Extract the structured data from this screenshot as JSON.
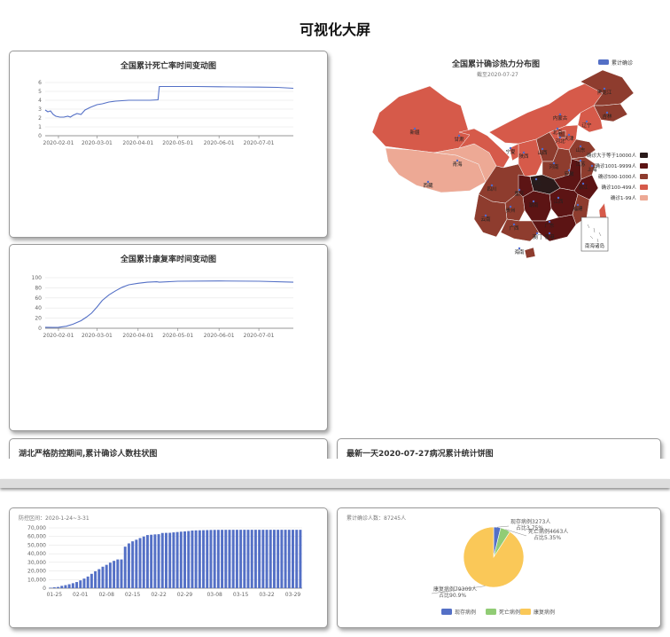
{
  "page_title": "可视化大屏",
  "cards": {
    "death": {
      "title": "全国累计死亡率时间变动图"
    },
    "recover": {
      "title": "全国累计康复率时间变动图"
    },
    "map": {
      "title": "全国累计确诊热力分布图",
      "subtitle": "截至2020-07-27"
    },
    "hubei_bar": {
      "title": "湖北严格防控期间,累计确诊人数柱状图",
      "subtitle": "防控区间：2020-1-24~3-31"
    },
    "pie": {
      "title": "最新一天2020-07-27病况累计统计饼图",
      "subtitle": "累计确诊人数：87245人"
    }
  },
  "chart_data": [
    {
      "id": "death",
      "type": "line",
      "title": "全国累计死亡率时间变动图",
      "x_ticks": [
        "2020-02-01",
        "2020-03-01",
        "2020-04-01",
        "2020-05-01",
        "2020-06-01",
        "2020-07-01"
      ],
      "y_ticks": [
        0,
        1,
        2,
        3,
        4,
        5,
        6
      ],
      "ylim": [
        0,
        6
      ],
      "x_start": "2020-01-22",
      "x_end": "2020-07-27",
      "color": "#5470c6",
      "points": [
        [
          "2020-01-22",
          2.9
        ],
        [
          "2020-01-24",
          2.7
        ],
        [
          "2020-01-26",
          2.8
        ],
        [
          "2020-01-28",
          2.4
        ],
        [
          "2020-01-30",
          2.2
        ],
        [
          "2020-02-02",
          2.1
        ],
        [
          "2020-02-05",
          2.1
        ],
        [
          "2020-02-08",
          2.2
        ],
        [
          "2020-02-10",
          2.1
        ],
        [
          "2020-02-12",
          2.3
        ],
        [
          "2020-02-15",
          2.5
        ],
        [
          "2020-02-18",
          2.4
        ],
        [
          "2020-02-21",
          2.9
        ],
        [
          "2020-02-25",
          3.2
        ],
        [
          "2020-03-01",
          3.5
        ],
        [
          "2020-03-05",
          3.6
        ],
        [
          "2020-03-10",
          3.8
        ],
        [
          "2020-03-15",
          3.9
        ],
        [
          "2020-03-20",
          3.95
        ],
        [
          "2020-03-25",
          4.0
        ],
        [
          "2020-04-01",
          4.0
        ],
        [
          "2020-04-10",
          4.0
        ],
        [
          "2020-04-16",
          4.05
        ],
        [
          "2020-04-17",
          5.55
        ],
        [
          "2020-05-01",
          5.55
        ],
        [
          "2020-05-15",
          5.55
        ],
        [
          "2020-06-01",
          5.52
        ],
        [
          "2020-06-15",
          5.5
        ],
        [
          "2020-07-01",
          5.48
        ],
        [
          "2020-07-15",
          5.45
        ],
        [
          "2020-07-27",
          5.35
        ]
      ]
    },
    {
      "id": "recover",
      "type": "line",
      "title": "全国累计康复率时间变动图",
      "x_ticks": [
        "2020-02-01",
        "2020-03-01",
        "2020-04-01",
        "2020-05-01",
        "2020-06-01",
        "2020-07-01"
      ],
      "y_ticks": [
        0,
        20,
        40,
        60,
        80,
        100
      ],
      "ylim": [
        0,
        100
      ],
      "x_start": "2020-01-22",
      "x_end": "2020-07-27",
      "color": "#5470c6",
      "points": [
        [
          "2020-01-22",
          2
        ],
        [
          "2020-01-28",
          1.5
        ],
        [
          "2020-02-01",
          2
        ],
        [
          "2020-02-07",
          4
        ],
        [
          "2020-02-12",
          8
        ],
        [
          "2020-02-18",
          15
        ],
        [
          "2020-02-22",
          22
        ],
        [
          "2020-02-26",
          30
        ],
        [
          "2020-03-01",
          42
        ],
        [
          "2020-03-05",
          55
        ],
        [
          "2020-03-10",
          66
        ],
        [
          "2020-03-15",
          74
        ],
        [
          "2020-03-20",
          81
        ],
        [
          "2020-03-25",
          86
        ],
        [
          "2020-04-01",
          89
        ],
        [
          "2020-04-08",
          91
        ],
        [
          "2020-04-15",
          92
        ],
        [
          "2020-04-17",
          91
        ],
        [
          "2020-05-01",
          93
        ],
        [
          "2020-06-01",
          93.5
        ],
        [
          "2020-07-01",
          93
        ],
        [
          "2020-07-27",
          91
        ]
      ]
    },
    {
      "id": "map",
      "type": "heatmap",
      "title": "全国累计确诊热力分布图",
      "subtitle": "截至2020-07-27",
      "legend_top": "累计确诊",
      "scale": [
        {
          "label": "确诊大于等于10000人",
          "color": "#2a1a1a"
        },
        {
          "label": "确诊1001-9999人",
          "color": "#5c1414"
        },
        {
          "label": "确诊500-1000人",
          "color": "#8e3c2e"
        },
        {
          "label": "确诊100-499人",
          "color": "#d65a4a"
        },
        {
          "label": "确诊1-99人",
          "color": "#eda995"
        }
      ],
      "inset_label": "南海诸岛",
      "labels": [
        "黑龙江",
        "吉林",
        "内蒙古",
        "辽宁",
        "北京",
        "天津",
        "河北",
        "山西",
        "山东",
        "新疆",
        "甘肃",
        "宁夏",
        "陕西",
        "青海",
        "西藏",
        "四川",
        "重庆",
        "湖北",
        "河南",
        "安徽",
        "江苏",
        "上海",
        "浙江",
        "湖南",
        "江西",
        "福建",
        "贵州",
        "云南",
        "广西",
        "广东",
        "澳门",
        "香港",
        "台湾",
        "海南"
      ]
    },
    {
      "id": "hubei_bar",
      "type": "bar",
      "title": "湖北严格防控期间,累计确诊人数柱状图",
      "subtitle": "防控区间：2020-1-24~3-31",
      "x_ticks": [
        "01-25",
        "02-01",
        "02-08",
        "02-15",
        "02-22",
        "02-29",
        "03-08",
        "03-15",
        "03-22",
        "03-29"
      ],
      "y_ticks": [
        0,
        10000,
        20000,
        30000,
        40000,
        50000,
        60000,
        70000
      ],
      "y_tick_labels": [
        "0",
        "10,000",
        "20,000",
        "30,000",
        "40,000",
        "50,000",
        "60,000",
        "70,000"
      ],
      "ylim": [
        0,
        70000
      ],
      "color": "#5470c6",
      "categories": [
        "01-24",
        "01-25",
        "01-26",
        "01-27",
        "01-28",
        "01-29",
        "01-30",
        "01-31",
        "02-01",
        "02-02",
        "02-03",
        "02-04",
        "02-05",
        "02-06",
        "02-07",
        "02-08",
        "02-09",
        "02-10",
        "02-11",
        "02-12",
        "02-13",
        "02-14",
        "02-15",
        "02-16",
        "02-17",
        "02-18",
        "02-19",
        "02-20",
        "02-21",
        "02-22",
        "02-23",
        "02-24",
        "02-25",
        "02-26",
        "02-27",
        "02-28",
        "02-29",
        "03-01",
        "03-02",
        "03-03",
        "03-04",
        "03-05",
        "03-06",
        "03-07",
        "03-08",
        "03-09",
        "03-10",
        "03-11",
        "03-12",
        "03-13",
        "03-14",
        "03-15",
        "03-16",
        "03-17",
        "03-18",
        "03-19",
        "03-20",
        "03-21",
        "03-22",
        "03-23",
        "03-24",
        "03-25",
        "03-26",
        "03-27",
        "03-28",
        "03-29",
        "03-30",
        "03-31"
      ],
      "values": [
        549,
        1052,
        1423,
        2714,
        3554,
        4586,
        5806,
        7153,
        9074,
        11177,
        13522,
        16678,
        19665,
        22112,
        24953,
        27100,
        29631,
        31728,
        33366,
        33366,
        48206,
        51986,
        54406,
        56249,
        58182,
        59989,
        61682,
        62031,
        62442,
        62662,
        64084,
        64212,
        64287,
        64786,
        65187,
        65596,
        65914,
        66337,
        66907,
        67103,
        67217,
        67332,
        67466,
        67592,
        67666,
        67707,
        67743,
        67760,
        67773,
        67781,
        67786,
        67790,
        67794,
        67798,
        67799,
        67800,
        67800,
        67800,
        67800,
        67801,
        67801,
        67801,
        67801,
        67801,
        67802,
        67802,
        67802,
        67802
      ]
    },
    {
      "id": "pie",
      "type": "pie",
      "title": "最新一天2020-07-27病况累计统计饼图",
      "subtitle": "累计确诊人数：87245人",
      "slices": [
        {
          "name": "现存病例",
          "value": 3273,
          "label": "现存病例3273人",
          "pct_label": "占比3.75%",
          "color": "#5470c6"
        },
        {
          "name": "死亡病例",
          "value": 4663,
          "label": "死亡病例4663人",
          "pct_label": "占比5.35%",
          "color": "#91cc75"
        },
        {
          "name": "康复病例",
          "value": 79309,
          "label": "康复病例79309人",
          "pct_label": "占比90.9%",
          "color": "#fac858"
        }
      ]
    }
  ]
}
